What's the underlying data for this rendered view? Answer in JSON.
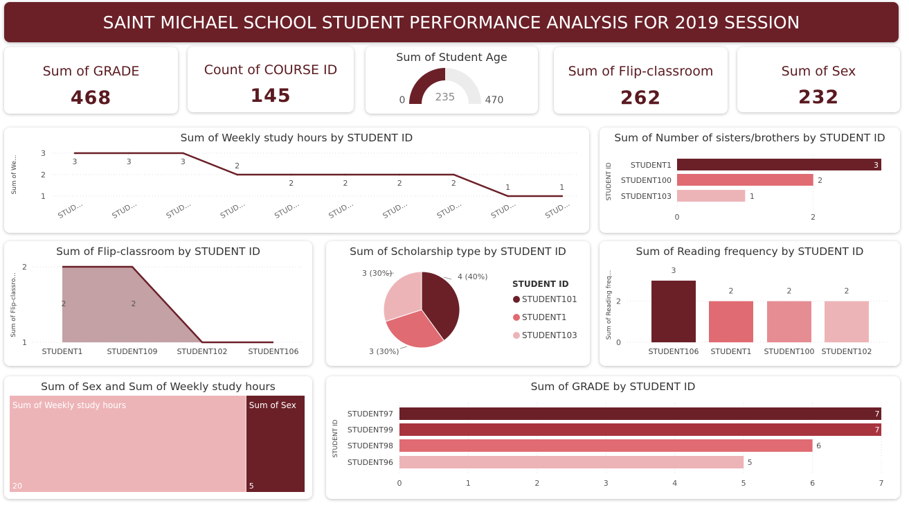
{
  "header": {
    "title": "SAINT MICHAEL SCHOOL STUDENT PERFORMANCE ANALYSIS FOR 2019 SESSION"
  },
  "kpis": [
    {
      "label": "Sum of GRADE",
      "value": "468"
    },
    {
      "label": "Count of COURSE ID",
      "value": "145"
    },
    {
      "label": "Sum of Flip-classroom",
      "value": "262"
    },
    {
      "label": "Sum of Sex",
      "value": "232"
    }
  ],
  "gauge": {
    "title": "Sum of Student Age",
    "min": "0",
    "max": "470",
    "value": "235",
    "value_num": 235,
    "max_num": 470
  },
  "colors": {
    "dark": "#6b2028",
    "red": "#a8343e",
    "mid": "#e06b72",
    "light": "#edb4b8",
    "area": "#c3a1a4"
  },
  "chart_data": [
    {
      "id": "weekly",
      "type": "line",
      "title": "Sum of Weekly study hours by STUDENT ID",
      "ylabel": "Sum of We...",
      "x": [
        "STUD...",
        "STUD...",
        "STUD...",
        "STUD...",
        "STUD...",
        "STUD...",
        "STUD...",
        "STUD...",
        "STUD...",
        "STUD..."
      ],
      "values": [
        3,
        3,
        3,
        2,
        2,
        2,
        2,
        2,
        1,
        1
      ],
      "yticks": [
        "1",
        "2",
        "3"
      ],
      "ylim": [
        1,
        3
      ]
    },
    {
      "id": "siblings",
      "type": "bar",
      "orientation": "horizontal",
      "title": "Sum of Number of sisters/brothers by STUDENT ID",
      "ylabel": "STUDENT ID",
      "categories": [
        "STUDENT1",
        "STUDENT100",
        "STUDENT103"
      ],
      "values": [
        3,
        2,
        1
      ],
      "xticks": [
        "0",
        "2"
      ],
      "xlim": [
        0,
        3
      ]
    },
    {
      "id": "flip",
      "type": "area",
      "title": "Sum of Flip-classroom by STUDENT ID",
      "ylabel": "Sum of Flip-classro...",
      "categories": [
        "STUDENT1",
        "STUDENT109",
        "STUDENT102",
        "STUDENT106"
      ],
      "values": [
        2,
        2,
        1,
        1
      ],
      "yticks": [
        "1",
        "2"
      ],
      "ylim": [
        1,
        2
      ]
    },
    {
      "id": "scholarship",
      "type": "pie",
      "title": "Sum of Scholarship type by STUDENT ID",
      "legend_title": "STUDENT ID",
      "labels": [
        "STUDENT101",
        "STUDENT1",
        "STUDENT103"
      ],
      "values": [
        4,
        3,
        3
      ],
      "data_labels": [
        "4 (40%)",
        "3 (30%)",
        "3 (30%)"
      ]
    },
    {
      "id": "reading",
      "type": "bar",
      "title": "Sum of Reading frequency by STUDENT ID",
      "ylabel": "Sum of Reading freq...",
      "categories": [
        "STUDENT106",
        "STUDENT1",
        "STUDENT100",
        "STUDENT102"
      ],
      "values": [
        3,
        2,
        2,
        2
      ],
      "yticks": [
        "0",
        "2"
      ],
      "ylim": [
        0,
        3
      ]
    },
    {
      "id": "treemap",
      "type": "treemap",
      "title": "Sum of Sex and Sum of Weekly study hours",
      "labels": [
        "Sum of Weekly study hours",
        "Sum of Sex"
      ],
      "values": [
        20,
        5
      ]
    },
    {
      "id": "grade",
      "type": "bar",
      "orientation": "horizontal",
      "title": "Sum of GRADE by STUDENT ID",
      "ylabel": "STUDENT ID",
      "categories": [
        "STUDENT97",
        "STUDENT99",
        "STUDENT98",
        "STUDENT96"
      ],
      "values": [
        7,
        7,
        6,
        5
      ],
      "xticks": [
        "0",
        "1",
        "2",
        "3",
        "4",
        "5",
        "6",
        "7"
      ],
      "xlim": [
        0,
        7
      ]
    }
  ]
}
